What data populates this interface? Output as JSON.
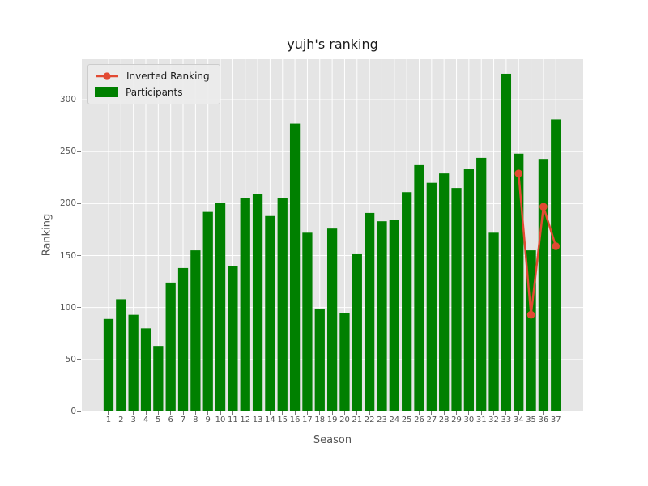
{
  "figure": {
    "title": "yujh's ranking"
  },
  "axes": {
    "xlabel": "Season",
    "ylabel": "Ranking",
    "background": "#e5e5e5",
    "grid_color": "#ffffff",
    "tick_color": "#555555"
  },
  "legend": {
    "items": [
      {
        "label": "Inverted Ranking",
        "marker": "line-dot",
        "color": "#e24a33"
      },
      {
        "label": "Participants",
        "marker": "square",
        "color": "#008000"
      }
    ]
  },
  "chart_data": {
    "type": "bar",
    "title": "yujh's ranking",
    "xlabel": "Season",
    "ylabel": "Ranking",
    "style": "ggplot",
    "grid": true,
    "grid_color": "#ffffff",
    "plot_background": "#e5e5e5",
    "legend_position": "upper left",
    "categories": [
      "1",
      "2",
      "3",
      "4",
      "5",
      "6",
      "7",
      "8",
      "9",
      "10",
      "11",
      "12",
      "13",
      "14",
      "15",
      "16",
      "17",
      "18",
      "19",
      "20",
      "21",
      "22",
      "23",
      "24",
      "25",
      "26",
      "27",
      "28",
      "29",
      "30",
      "31",
      "32",
      "33",
      "34",
      "35",
      "36",
      "37"
    ],
    "yticks": [
      0,
      50,
      100,
      150,
      200,
      250,
      300
    ],
    "ylim": [
      0,
      339
    ],
    "xlim": [
      -1.15,
      39.2
    ],
    "bar_width": 0.8,
    "series": [
      {
        "name": "Participants",
        "type": "bar",
        "color": "#008000",
        "values": [
          89,
          108,
          93,
          80,
          63,
          124,
          138,
          155,
          192,
          201,
          140,
          205,
          209,
          188,
          205,
          277,
          172,
          99,
          176,
          95,
          152,
          191,
          183,
          184,
          211,
          237,
          220,
          229,
          215,
          233,
          244,
          172,
          325,
          248,
          155,
          243,
          281
        ]
      },
      {
        "name": "Inverted Ranking",
        "type": "line",
        "color": "#e24a33",
        "marker": "circle",
        "x": [
          34,
          35,
          36,
          37
        ],
        "values": [
          229,
          93,
          197,
          159
        ]
      }
    ]
  }
}
